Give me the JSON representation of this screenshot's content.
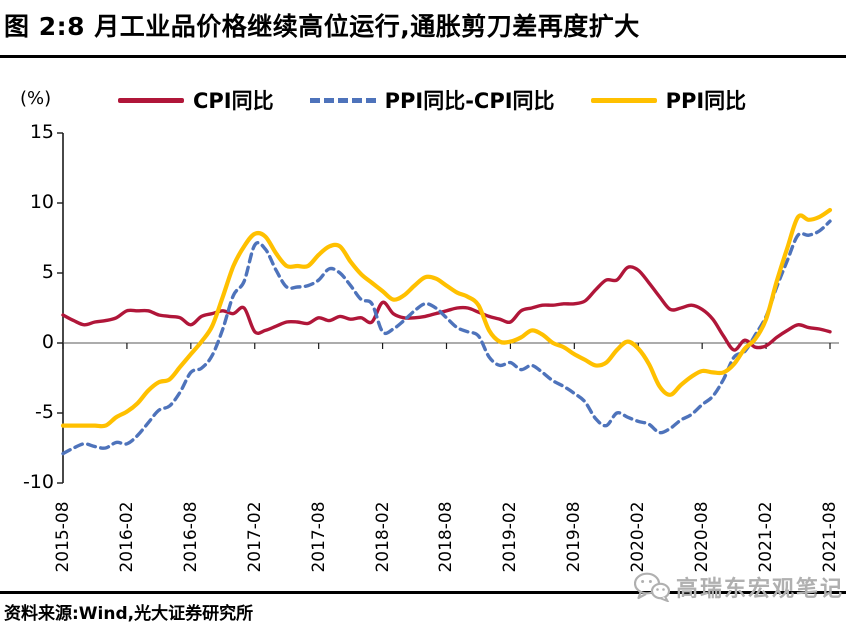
{
  "title": "图 2:8 月工业品价格继续高位运行,通胀剪刀差再度扩大",
  "source": "资料来源:Wind,光大证券研究所",
  "watermark": "高瑞东宏观笔记",
  "unit_label": "(%)",
  "colors": {
    "cpi_red": "#B01639",
    "diff_blue": "#4E73BB",
    "ppi_yellow": "#FFC000",
    "axis": "#1a1a1a",
    "zero_line": "#595959",
    "watermark_gray": "#b0b0b0"
  },
  "chart_data": {
    "type": "line",
    "title": "图 2:8 月工业品价格继续高位运行,通胀剪刀差再度扩大",
    "ylabel": "(%)",
    "ylim": [
      -10,
      15
    ],
    "grid": false,
    "legend_position": "top",
    "y_ticks": [
      15,
      10,
      5,
      0,
      -5,
      -10
    ],
    "y_tick_labels": [
      "15",
      "10",
      "5",
      "0",
      "-5",
      "-10"
    ],
    "x_tick_labels": [
      "2015-08",
      "2016-02",
      "2016-08",
      "2017-02",
      "2017-08",
      "2018-02",
      "2018-08",
      "2019-02",
      "2019-08",
      "2020-02",
      "2020-08",
      "2021-02",
      "2021-08"
    ],
    "x": [
      "2015-08",
      "2015-09",
      "2015-10",
      "2015-11",
      "2015-12",
      "2016-01",
      "2016-02",
      "2016-03",
      "2016-04",
      "2016-05",
      "2016-06",
      "2016-07",
      "2016-08",
      "2016-09",
      "2016-10",
      "2016-11",
      "2016-12",
      "2017-01",
      "2017-02",
      "2017-03",
      "2017-04",
      "2017-05",
      "2017-06",
      "2017-07",
      "2017-08",
      "2017-09",
      "2017-10",
      "2017-11",
      "2017-12",
      "2018-01",
      "2018-02",
      "2018-03",
      "2018-04",
      "2018-05",
      "2018-06",
      "2018-07",
      "2018-08",
      "2018-09",
      "2018-10",
      "2018-11",
      "2018-12",
      "2019-01",
      "2019-02",
      "2019-03",
      "2019-04",
      "2019-05",
      "2019-06",
      "2019-07",
      "2019-08",
      "2019-09",
      "2019-10",
      "2019-11",
      "2019-12",
      "2020-01",
      "2020-02",
      "2020-03",
      "2020-04",
      "2020-05",
      "2020-06",
      "2020-07",
      "2020-08",
      "2020-09",
      "2020-10",
      "2020-11",
      "2020-12",
      "2021-01",
      "2021-02",
      "2021-03",
      "2021-04",
      "2021-05",
      "2021-06",
      "2021-07",
      "2021-08"
    ],
    "series": [
      {
        "name": "CPI同比",
        "color": "#B01639",
        "style": "solid",
        "values": [
          2.0,
          1.6,
          1.3,
          1.5,
          1.6,
          1.8,
          2.3,
          2.3,
          2.3,
          2.0,
          1.9,
          1.8,
          1.3,
          1.9,
          2.1,
          2.3,
          2.1,
          2.5,
          0.8,
          0.9,
          1.2,
          1.5,
          1.5,
          1.4,
          1.8,
          1.6,
          1.9,
          1.7,
          1.8,
          1.5,
          2.9,
          2.1,
          1.8,
          1.8,
          1.9,
          2.1,
          2.3,
          2.5,
          2.5,
          2.2,
          1.9,
          1.7,
          1.5,
          2.3,
          2.5,
          2.7,
          2.7,
          2.8,
          2.8,
          3.0,
          3.8,
          4.5,
          4.5,
          5.4,
          5.2,
          4.3,
          3.3,
          2.4,
          2.5,
          2.7,
          2.4,
          1.7,
          0.5,
          -0.5,
          0.2,
          -0.3,
          -0.2,
          0.4,
          0.9,
          1.3,
          1.1,
          1.0,
          0.8
        ]
      },
      {
        "name": "PPI同比-CPI同比",
        "color": "#4E73BB",
        "style": "dashed",
        "values": [
          -7.9,
          -7.5,
          -7.2,
          -7.4,
          -7.5,
          -7.1,
          -7.2,
          -6.6,
          -5.7,
          -4.8,
          -4.5,
          -3.5,
          -2.1,
          -1.8,
          -0.9,
          1.0,
          3.4,
          4.4,
          7.0,
          6.7,
          5.2,
          4.0,
          4.0,
          4.1,
          4.5,
          5.3,
          5.0,
          4.1,
          3.1,
          2.8,
          0.8,
          1.0,
          1.6,
          2.3,
          2.8,
          2.5,
          1.8,
          1.1,
          0.8,
          0.5,
          -1.0,
          -1.6,
          -1.4,
          -1.9,
          -1.6,
          -2.1,
          -2.7,
          -3.1,
          -3.6,
          -4.2,
          -5.4,
          -5.9,
          -5.0,
          -5.3,
          -5.6,
          -5.8,
          -6.4,
          -6.1,
          -5.5,
          -5.1,
          -4.4,
          -3.8,
          -2.6,
          -1.0,
          -0.6,
          0.6,
          1.9,
          4.0,
          5.9,
          7.7,
          7.7,
          8.0,
          8.7
        ]
      },
      {
        "name": "PPI同比",
        "color": "#FFC000",
        "style": "solid",
        "values": [
          -5.9,
          -5.9,
          -5.9,
          -5.9,
          -5.9,
          -5.3,
          -4.9,
          -4.3,
          -3.4,
          -2.8,
          -2.6,
          -1.7,
          -0.8,
          0.1,
          1.2,
          3.3,
          5.5,
          6.9,
          7.8,
          7.6,
          6.4,
          5.5,
          5.5,
          5.5,
          6.3,
          6.9,
          6.9,
          5.8,
          4.9,
          4.3,
          3.7,
          3.1,
          3.4,
          4.1,
          4.7,
          4.6,
          4.1,
          3.6,
          3.3,
          2.7,
          0.9,
          0.1,
          0.1,
          0.4,
          0.9,
          0.6,
          0.0,
          -0.3,
          -0.8,
          -1.2,
          -1.6,
          -1.4,
          -0.5,
          0.1,
          -0.4,
          -1.5,
          -3.1,
          -3.7,
          -3.0,
          -2.4,
          -2.0,
          -2.1,
          -2.1,
          -1.5,
          -0.4,
          0.3,
          1.7,
          4.4,
          6.8,
          9.0,
          8.8,
          9.0,
          9.5
        ]
      }
    ]
  }
}
